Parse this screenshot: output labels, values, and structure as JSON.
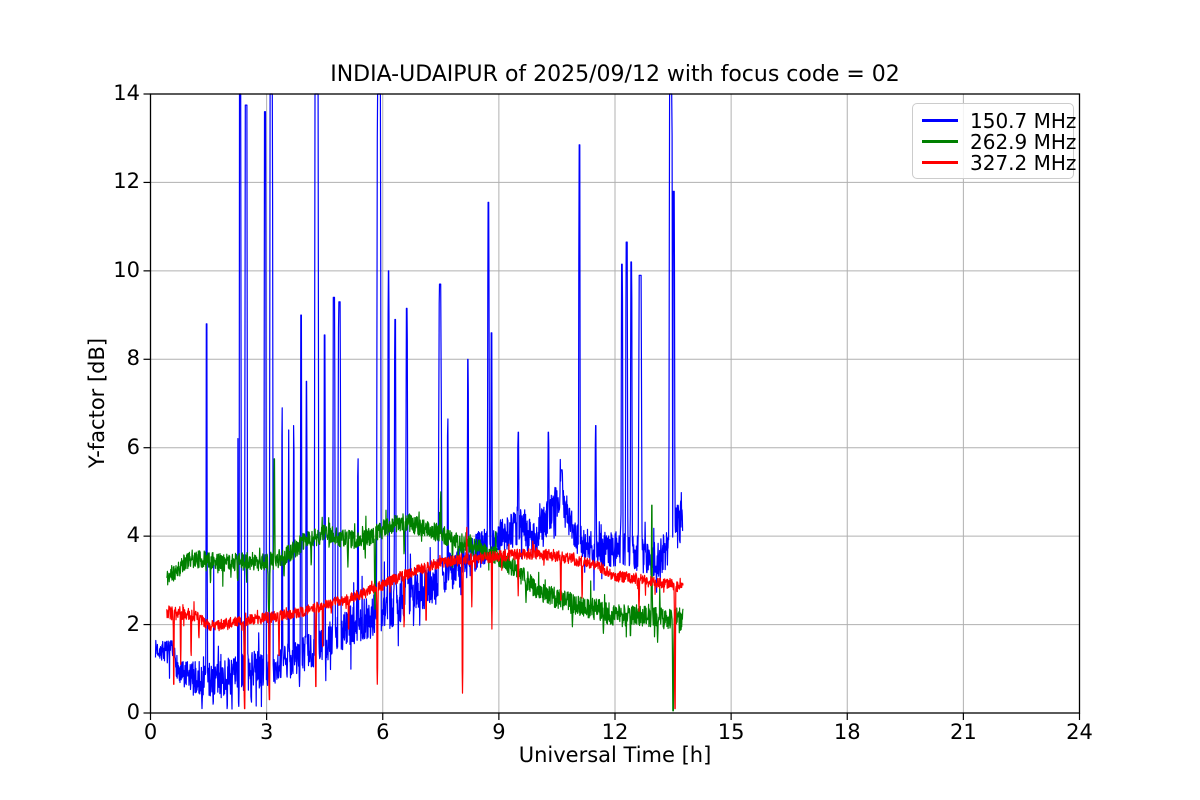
{
  "title": "INDIA-UDAIPUR of 2025/09/12 with focus code = 02",
  "axes": {
    "xlabel": "Universal Time [h]",
    "ylabel": "Y-factor [dB]",
    "xticks": [
      0,
      3,
      6,
      9,
      12,
      15,
      18,
      21,
      24
    ],
    "yticks": [
      0,
      2,
      4,
      6,
      8,
      10,
      12,
      14
    ]
  },
  "style": {
    "grid_color": "#b0b0b0",
    "axis_color": "#000000",
    "background": "#ffffff",
    "legend_border": "#cccccc"
  },
  "legend": {
    "entries": [
      {
        "label": "150.7 MHz",
        "color": "#0000ff"
      },
      {
        "label": "262.9 MHz",
        "color": "#008000"
      },
      {
        "label": "327.2 MHz",
        "color": "#ff0000"
      }
    ]
  },
  "chart_data": {
    "type": "line",
    "title": "INDIA-UDAIPUR of 2025/09/12 with focus code = 02",
    "xlabel": "Universal Time [h]",
    "ylabel": "Y-factor [dB]",
    "xlim": [
      0,
      24
    ],
    "ylim": [
      0,
      14
    ],
    "grid": true,
    "legend_position": "upper right",
    "sampling": {
      "dt": 0.008,
      "default_spike_width": 0.014,
      "default_plateau": 0.005
    },
    "series": [
      {
        "name": "150.7 MHz",
        "color": "#0000ff",
        "seed": 7,
        "t_start": 0.13,
        "t_end": 13.76,
        "baseline": {
          "t": [
            0.13,
            0.6,
            0.75,
            1.0,
            1.5,
            2.0,
            2.5,
            3.0,
            3.5,
            4.0,
            4.5,
            5.0,
            5.5,
            6.0,
            6.5,
            7.0,
            7.5,
            8.0,
            8.5,
            9.0,
            9.3,
            9.6,
            9.9,
            10.2,
            10.45,
            10.75,
            10.95,
            11.2,
            11.7,
            12.2,
            12.7,
            13.1,
            13.35,
            13.6,
            13.76
          ],
          "v": [
            1.45,
            1.35,
            0.85,
            0.8,
            0.75,
            0.8,
            0.95,
            1.0,
            1.15,
            1.35,
            1.55,
            1.9,
            2.1,
            2.3,
            2.55,
            2.8,
            3.1,
            3.3,
            3.7,
            4.0,
            4.1,
            4.3,
            3.9,
            4.3,
            4.7,
            4.6,
            4.0,
            3.8,
            3.7,
            3.7,
            3.6,
            3.4,
            3.7,
            4.2,
            4.4
          ]
        },
        "noise": {
          "t": [
            0.13,
            0.7,
            1.0,
            2.0,
            3.0,
            4.0,
            5.0,
            6.0,
            7.0,
            8.0,
            9.0,
            10.0,
            11.0,
            12.0,
            13.0,
            13.76
          ],
          "amp": [
            0.2,
            0.3,
            0.38,
            0.45,
            0.42,
            0.4,
            0.45,
            0.5,
            0.5,
            0.45,
            0.4,
            0.5,
            0.38,
            0.4,
            0.42,
            0.55
          ]
        },
        "spikes_up": [
          [
            1.45,
            8.8,
            0.02,
            0.008
          ],
          [
            1.62,
            8.5,
            0.018,
            0.006
          ],
          [
            2.3,
            14.2,
            0.05,
            0.03
          ],
          [
            2.47,
            13.75,
            0.04,
            0.02
          ],
          [
            2.96,
            13.6,
            0.032,
            0.014
          ],
          [
            3.12,
            14.2,
            0.05,
            0.03
          ],
          [
            3.4,
            6.9
          ],
          [
            3.57,
            6.4
          ],
          [
            3.7,
            6.5
          ],
          [
            3.89,
            9.0,
            0.022,
            0.01
          ],
          [
            4.03,
            7.5,
            0.02,
            0.008
          ],
          [
            4.29,
            14.2,
            0.06,
            0.04
          ],
          [
            4.5,
            8.55,
            0.022,
            0.01
          ],
          [
            4.74,
            9.4,
            0.035,
            0.018
          ],
          [
            4.88,
            9.3,
            0.045,
            0.02
          ],
          [
            5.36,
            5.75
          ],
          [
            5.9,
            14.2,
            0.06,
            0.04
          ],
          [
            6.15,
            10.0,
            0.025,
            0.01
          ],
          [
            6.32,
            8.9,
            0.025,
            0.012
          ],
          [
            6.62,
            9.15,
            0.03,
            0.012
          ],
          [
            7.48,
            9.7,
            0.05,
            0.02
          ],
          [
            7.68,
            6.65
          ],
          [
            8.2,
            8.0,
            0.02,
            0.008
          ],
          [
            8.73,
            11.55,
            0.028,
            0.012
          ],
          [
            8.81,
            8.6,
            0.02,
            0.008
          ],
          [
            9.5,
            6.35,
            0.02,
            0.008
          ],
          [
            10.28,
            6.35,
            0.02,
            0.008
          ],
          [
            10.62,
            5.5,
            0.04,
            0.02
          ],
          [
            11.08,
            12.85,
            0.024,
            0.01
          ],
          [
            11.5,
            6.5,
            0.02,
            0.008
          ],
          [
            12.18,
            10.15,
            0.028,
            0.012
          ],
          [
            12.3,
            10.65,
            0.032,
            0.014
          ],
          [
            12.42,
            10.2,
            0.028,
            0.012
          ],
          [
            12.65,
            9.9,
            0.05,
            0.025
          ],
          [
            13.44,
            14.2,
            0.05,
            0.032
          ],
          [
            13.52,
            11.8,
            0.03,
            0.014
          ]
        ],
        "spikes_down": [
          [
            1.33,
            0.1
          ],
          [
            1.62,
            0.2
          ],
          [
            1.98,
            0.1
          ],
          [
            2.28,
            0.15
          ],
          [
            2.6,
            0.3
          ],
          [
            3.85,
            0.6
          ]
        ]
      },
      {
        "name": "262.9 MHz",
        "color": "#008000",
        "seed": 11,
        "t_start": 0.42,
        "t_end": 13.76,
        "baseline": {
          "t": [
            0.42,
            0.7,
            1.0,
            1.5,
            2.0,
            2.5,
            3.0,
            3.5,
            4.0,
            4.5,
            5.0,
            5.5,
            6.0,
            6.3,
            6.7,
            7.0,
            7.5,
            8.0,
            8.5,
            9.0,
            9.5,
            10.0,
            10.5,
            11.0,
            11.5,
            12.0,
            12.5,
            13.0,
            13.4,
            13.76
          ],
          "v": [
            3.05,
            3.25,
            3.5,
            3.45,
            3.4,
            3.45,
            3.4,
            3.55,
            3.9,
            4.05,
            3.95,
            3.9,
            4.15,
            4.3,
            4.3,
            4.2,
            4.05,
            3.85,
            3.7,
            3.5,
            3.2,
            2.75,
            2.6,
            2.45,
            2.35,
            2.2,
            2.2,
            2.2,
            2.15,
            2.1
          ]
        },
        "noise": {
          "t": [
            0.42,
            9.0,
            13.76
          ],
          "amp": [
            0.2,
            0.22,
            0.27
          ]
        },
        "spikes_up": [
          [
            3.2,
            5.75,
            0.018,
            0.007
          ],
          [
            7.5,
            5.0,
            0.016,
            0.006
          ],
          [
            8.92,
            4.1
          ],
          [
            12.95,
            4.7,
            0.016,
            0.006
          ]
        ],
        "spikes_down": [
          [
            1.55,
            2.95
          ],
          [
            2.25,
            3.0
          ],
          [
            3.06,
            2.3,
            0.028,
            0.012
          ],
          [
            3.45,
            3.1
          ],
          [
            4.15,
            3.35
          ],
          [
            5.1,
            3.3
          ],
          [
            5.8,
            2.35,
            0.018,
            0.007
          ],
          [
            6.55,
            3.6
          ],
          [
            7.8,
            3.3
          ],
          [
            9.7,
            2.5
          ],
          [
            10.9,
            1.95
          ],
          [
            11.7,
            1.8
          ],
          [
            12.4,
            1.75
          ],
          [
            13.1,
            1.6
          ],
          [
            13.5,
            0.05,
            0.02,
            0.008
          ]
        ]
      },
      {
        "name": "327.2 MHz",
        "color": "#ff0000",
        "seed": 3,
        "t_start": 0.42,
        "t_end": 13.76,
        "baseline": {
          "t": [
            0.42,
            1.2,
            1.5,
            1.9,
            2.5,
            3.0,
            3.5,
            4.0,
            4.5,
            5.0,
            5.5,
            6.0,
            6.5,
            7.0,
            7.5,
            8.0,
            8.5,
            9.0,
            9.5,
            10.0,
            10.5,
            11.0,
            11.5,
            12.0,
            12.5,
            13.0,
            13.4,
            13.76
          ],
          "v": [
            2.3,
            2.2,
            1.97,
            2.02,
            2.1,
            2.15,
            2.22,
            2.3,
            2.45,
            2.55,
            2.7,
            2.9,
            3.1,
            3.25,
            3.4,
            3.45,
            3.5,
            3.55,
            3.6,
            3.6,
            3.55,
            3.45,
            3.35,
            3.1,
            3.05,
            2.95,
            2.9,
            2.85
          ]
        },
        "noise": {
          "t": [
            0.42,
            1.3,
            2.0,
            13.76
          ],
          "amp": [
            0.17,
            0.12,
            0.12,
            0.13
          ]
        },
        "spikes_up": [
          [
            8.17,
            4.2,
            0.012,
            0.004
          ]
        ],
        "spikes_down": [
          [
            0.6,
            0.65
          ],
          [
            0.78,
            1.1
          ],
          [
            1.05,
            1.3
          ],
          [
            1.25,
            1.7
          ],
          [
            2.43,
            0.1,
            0.022,
            0.008
          ],
          [
            3.07,
            0.3,
            0.02,
            0.008
          ],
          [
            3.32,
            1.3
          ],
          [
            4.27,
            0.6,
            0.018,
            0.006
          ],
          [
            4.45,
            1.5
          ],
          [
            5.12,
            1.9
          ],
          [
            5.86,
            0.65,
            0.018,
            0.006
          ],
          [
            6.55,
            1.95
          ],
          [
            7.12,
            2.1
          ],
          [
            8.06,
            0.45,
            0.018,
            0.006
          ],
          [
            8.3,
            2.4
          ],
          [
            8.82,
            1.9
          ],
          [
            9.5,
            2.65
          ],
          [
            10.6,
            2.55
          ],
          [
            11.15,
            2.6
          ],
          [
            12.62,
            2.3
          ],
          [
            13.55,
            0.1,
            0.02,
            0.008
          ]
        ]
      }
    ]
  }
}
